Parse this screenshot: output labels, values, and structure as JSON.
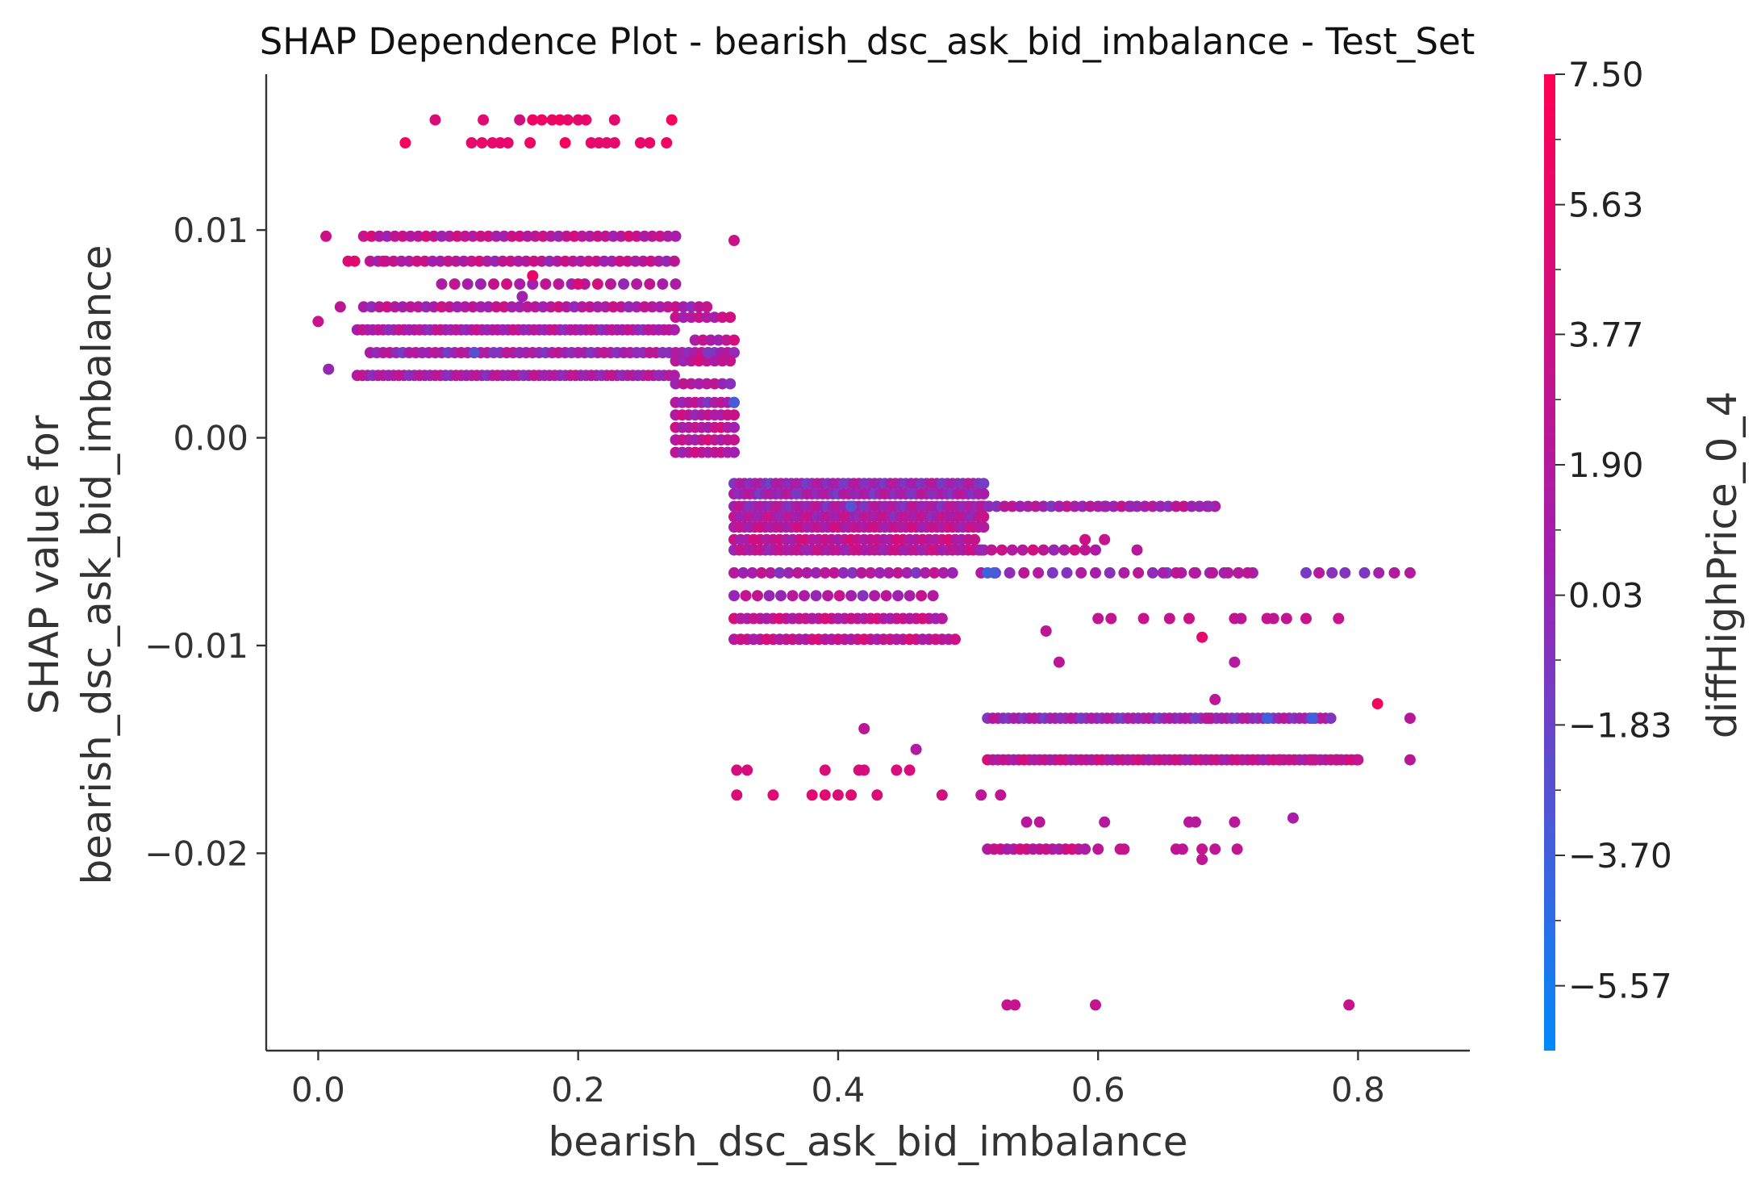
{
  "chart_data": {
    "type": "scatter",
    "title": "SHAP Dependence Plot - bearish_dsc_ask_bid_imbalance - Test_Set",
    "xlabel": "bearish_dsc_ask_bid_imbalance",
    "ylabel_lines": [
      "SHAP value for",
      "bearish_dsc_ask_bid_imbalance"
    ],
    "xlim": [
      -0.04,
      0.886
    ],
    "ylim": [
      -0.0295,
      0.0175
    ],
    "x_ticks": [
      0.0,
      0.2,
      0.4,
      0.6,
      0.8
    ],
    "x_tick_labels": [
      "0.0",
      "0.2",
      "0.4",
      "0.6",
      "0.8"
    ],
    "y_ticks": [
      0.01,
      0.0,
      -0.01,
      -0.02
    ],
    "y_tick_labels": [
      "0.01",
      "0.00",
      "−0.01",
      "−0.02"
    ],
    "grid": false,
    "colorbar": {
      "label": "diffHighPrice_0_4",
      "min": -6.5,
      "max": 7.5,
      "ticks": [
        7.5,
        5.63,
        3.77,
        1.9,
        0.03,
        -1.83,
        -3.7,
        -5.57
      ],
      "tick_labels": [
        "7.50",
        "5.63",
        "3.77",
        "1.90",
        "0.03",
        "−1.83",
        "−3.70",
        "−5.57"
      ],
      "color_low": "#008afb",
      "color_mid": "#a020b0",
      "color_high": "#ff0052"
    },
    "point_color_default": 1.9,
    "bands": [
      {
        "x0": 0.035,
        "x1": 0.275,
        "y": 0.0097,
        "step": 0.006,
        "c": 2.5
      },
      {
        "x0": 0.04,
        "x1": 0.275,
        "y": 0.0085,
        "step": 0.006,
        "c": 2.2
      },
      {
        "x0": 0.095,
        "x1": 0.275,
        "y": 0.0074,
        "step": 0.01,
        "c": 1.9
      },
      {
        "x0": 0.035,
        "x1": 0.3,
        "y": 0.0063,
        "step": 0.006,
        "c": 1.8
      },
      {
        "x0": 0.03,
        "x1": 0.275,
        "y": 0.0052,
        "step": 0.004,
        "c": 1.4
      },
      {
        "x0": 0.04,
        "x1": 0.32,
        "y": 0.0041,
        "step": 0.005,
        "c": 0.8
      },
      {
        "x0": 0.03,
        "x1": 0.275,
        "y": 0.003,
        "step": 0.004,
        "c": 1.3
      },
      {
        "x0": 0.275,
        "x1": 0.32,
        "y": 0.0058,
        "step": 0.006,
        "c": 2.3
      },
      {
        "x0": 0.29,
        "x1": 0.32,
        "y": 0.0047,
        "step": 0.006,
        "c": 2.1
      },
      {
        "x0": 0.275,
        "x1": 0.32,
        "y": 0.0037,
        "step": 0.006,
        "c": 2.4
      },
      {
        "x0": 0.275,
        "x1": 0.32,
        "y": 0.0026,
        "step": 0.006,
        "c": 1.5
      },
      {
        "x0": 0.275,
        "x1": 0.32,
        "y": 0.0017,
        "step": 0.005,
        "c": 1.2
      },
      {
        "x0": 0.275,
        "x1": 0.32,
        "y": 0.0011,
        "step": 0.005,
        "c": 2.0
      },
      {
        "x0": 0.275,
        "x1": 0.32,
        "y": 0.0005,
        "step": 0.005,
        "c": 2.3
      },
      {
        "x0": 0.275,
        "x1": 0.32,
        "y": -0.0001,
        "step": 0.005,
        "c": 2.5
      },
      {
        "x0": 0.275,
        "x1": 0.32,
        "y": -0.0007,
        "step": 0.005,
        "c": 2.3
      },
      {
        "x0": 0.32,
        "x1": 0.515,
        "y": -0.0022,
        "step": 0.004,
        "c": 0.3
      },
      {
        "x0": 0.32,
        "x1": 0.515,
        "y": -0.0027,
        "step": 0.004,
        "c": 0.6
      },
      {
        "x0": 0.32,
        "x1": 0.515,
        "y": -0.0033,
        "step": 0.004,
        "c": 0.9
      },
      {
        "x0": 0.32,
        "x1": 0.515,
        "y": -0.0038,
        "step": 0.004,
        "c": 1.6
      },
      {
        "x0": 0.32,
        "x1": 0.515,
        "y": -0.0043,
        "step": 0.004,
        "c": 2.3
      },
      {
        "x0": 0.32,
        "x1": 0.505,
        "y": -0.0049,
        "step": 0.005,
        "c": 2.6
      },
      {
        "x0": 0.32,
        "x1": 0.515,
        "y": -0.0054,
        "step": 0.004,
        "c": 2.0
      },
      {
        "x0": 0.32,
        "x1": 0.49,
        "y": -0.0065,
        "step": 0.007,
        "c": 1.2
      },
      {
        "x0": 0.32,
        "x1": 0.48,
        "y": -0.0076,
        "step": 0.009,
        "c": 1.3
      },
      {
        "x0": 0.32,
        "x1": 0.48,
        "y": -0.0087,
        "step": 0.005,
        "c": 2.6
      },
      {
        "x0": 0.32,
        "x1": 0.49,
        "y": -0.0097,
        "step": 0.005,
        "c": 2.8
      },
      {
        "x0": 0.51,
        "x1": 0.69,
        "y": -0.0033,
        "step": 0.006,
        "c": 1.2
      },
      {
        "x0": 0.51,
        "x1": 0.6,
        "y": -0.0054,
        "step": 0.008,
        "c": 2.4
      },
      {
        "x0": 0.51,
        "x1": 0.72,
        "y": -0.0065,
        "step": 0.011,
        "c": 0.6
      },
      {
        "x0": 0.515,
        "x1": 0.78,
        "y": -0.0135,
        "step": 0.004,
        "c": 0.4
      },
      {
        "x0": 0.515,
        "x1": 0.8,
        "y": -0.0155,
        "step": 0.004,
        "c": 2.6
      },
      {
        "x0": 0.515,
        "x1": 0.59,
        "y": -0.0198,
        "step": 0.005,
        "c": 2.7
      }
    ],
    "points": [
      [
        0.09,
        0.0153,
        4.6
      ],
      [
        0.127,
        0.0153,
        5.2
      ],
      [
        0.155,
        0.0153,
        4.2
      ],
      [
        0.165,
        0.0153,
        6.4
      ],
      [
        0.172,
        0.0153,
        6.4
      ],
      [
        0.18,
        0.0153,
        6.0
      ],
      [
        0.186,
        0.0153,
        6.4
      ],
      [
        0.192,
        0.0153,
        5.8
      ],
      [
        0.2,
        0.0153,
        5.6
      ],
      [
        0.206,
        0.0153,
        5.8
      ],
      [
        0.228,
        0.0153,
        5.6
      ],
      [
        0.272,
        0.0153,
        6.8
      ],
      [
        0.067,
        0.0142,
        6.8
      ],
      [
        0.118,
        0.0142,
        5.6
      ],
      [
        0.126,
        0.0142,
        5.8
      ],
      [
        0.134,
        0.0142,
        5.8
      ],
      [
        0.14,
        0.0142,
        5.8
      ],
      [
        0.146,
        0.0142,
        5.6
      ],
      [
        0.163,
        0.0142,
        6.4
      ],
      [
        0.19,
        0.0142,
        6.8
      ],
      [
        0.21,
        0.0142,
        5.8
      ],
      [
        0.216,
        0.0142,
        5.6
      ],
      [
        0.222,
        0.0142,
        5.4
      ],
      [
        0.228,
        0.0142,
        5.6
      ],
      [
        0.248,
        0.0142,
        5.8
      ],
      [
        0.255,
        0.0142,
        5.8
      ],
      [
        0.268,
        0.0142,
        6.2
      ],
      [
        0.006,
        0.0097,
        3.6
      ],
      [
        0.023,
        0.0085,
        5.0
      ],
      [
        0.028,
        0.0085,
        5.4
      ],
      [
        0.05,
        0.0085,
        3.6
      ],
      [
        0.017,
        0.0063,
        2.5
      ],
      [
        0.0,
        0.0056,
        3.2
      ],
      [
        0.008,
        0.0033,
        0.2
      ],
      [
        0.2,
        0.0074,
        4.8
      ],
      [
        0.165,
        0.0078,
        5.8
      ],
      [
        0.157,
        0.0068,
        0.6
      ],
      [
        0.12,
        0.0041,
        -2.5
      ],
      [
        0.32,
        0.0095,
        3.5
      ],
      [
        0.32,
        0.0017,
        -3.2
      ],
      [
        0.3,
        0.0041,
        -1.0
      ],
      [
        0.515,
        -0.0065,
        -3.8
      ],
      [
        0.52,
        -0.0065,
        -3.5
      ],
      [
        0.41,
        -0.0033,
        -2.8
      ],
      [
        0.57,
        -0.0033,
        0.8
      ],
      [
        0.605,
        -0.0033,
        0.8
      ],
      [
        0.625,
        -0.0033,
        0.2
      ],
      [
        0.685,
        -0.0033,
        0.0
      ],
      [
        0.59,
        -0.0049,
        3.6
      ],
      [
        0.605,
        -0.0049,
        3.0
      ],
      [
        0.63,
        -0.0054,
        2.2
      ],
      [
        0.65,
        -0.0065,
        0.8
      ],
      [
        0.66,
        -0.0065,
        2.6
      ],
      [
        0.674,
        -0.0065,
        1.7
      ],
      [
        0.688,
        -0.0065,
        2.2
      ],
      [
        0.7,
        -0.0065,
        1.6
      ],
      [
        0.708,
        -0.0065,
        2.0
      ],
      [
        0.715,
        -0.0065,
        2.5
      ],
      [
        0.77,
        -0.0065,
        2.1
      ],
      [
        0.79,
        -0.0065,
        -0.8
      ],
      [
        0.805,
        -0.0065,
        -1.0
      ],
      [
        0.76,
        -0.0065,
        -1.2
      ],
      [
        0.78,
        -0.0065,
        -0.6
      ],
      [
        0.84,
        -0.0065,
        1.8
      ],
      [
        0.828,
        -0.0065,
        1.7
      ],
      [
        0.816,
        -0.0065,
        0.8
      ],
      [
        0.6,
        -0.0087,
        2.6
      ],
      [
        0.61,
        -0.0087,
        3.0
      ],
      [
        0.635,
        -0.0087,
        3.2
      ],
      [
        0.655,
        -0.0087,
        2.9
      ],
      [
        0.67,
        -0.0087,
        3.6
      ],
      [
        0.705,
        -0.0087,
        2.8
      ],
      [
        0.71,
        -0.0087,
        2.6
      ],
      [
        0.73,
        -0.0087,
        3.0
      ],
      [
        0.735,
        -0.0087,
        2.8
      ],
      [
        0.745,
        -0.0087,
        2.8
      ],
      [
        0.76,
        -0.0087,
        3.2
      ],
      [
        0.785,
        -0.0087,
        3.2
      ],
      [
        0.68,
        -0.0096,
        5.6
      ],
      [
        0.56,
        -0.0093,
        2.5
      ],
      [
        0.705,
        -0.0108,
        1.8
      ],
      [
        0.57,
        -0.0108,
        2.4
      ],
      [
        0.69,
        -0.0126,
        2.4
      ],
      [
        0.815,
        -0.0128,
        6.5
      ],
      [
        0.84,
        -0.0135,
        2.2
      ],
      [
        0.765,
        -0.0135,
        -3.6
      ],
      [
        0.73,
        -0.0135,
        -3.6
      ],
      [
        0.685,
        -0.0135,
        2.4
      ],
      [
        0.84,
        -0.0155,
        2.5
      ],
      [
        0.74,
        -0.0155,
        3.0
      ],
      [
        0.765,
        -0.0155,
        3.0
      ],
      [
        0.784,
        -0.0155,
        3.1
      ],
      [
        0.8,
        -0.0155,
        3.0
      ],
      [
        0.42,
        -0.014,
        2.5
      ],
      [
        0.46,
        -0.015,
        1.6
      ],
      [
        0.322,
        -0.016,
        4.4
      ],
      [
        0.33,
        -0.016,
        4.4
      ],
      [
        0.39,
        -0.016,
        4.6
      ],
      [
        0.416,
        -0.016,
        4.5
      ],
      [
        0.42,
        -0.016,
        4.4
      ],
      [
        0.445,
        -0.016,
        4.6
      ],
      [
        0.455,
        -0.016,
        4.6
      ],
      [
        0.322,
        -0.0172,
        4.8
      ],
      [
        0.35,
        -0.0172,
        5.0
      ],
      [
        0.38,
        -0.0172,
        5.2
      ],
      [
        0.39,
        -0.0172,
        5.2
      ],
      [
        0.4,
        -0.0172,
        4.8
      ],
      [
        0.41,
        -0.0172,
        5.2
      ],
      [
        0.43,
        -0.0172,
        4.8
      ],
      [
        0.48,
        -0.0172,
        4.2
      ],
      [
        0.51,
        -0.0172,
        2.6
      ],
      [
        0.525,
        -0.0172,
        2.8
      ],
      [
        0.545,
        -0.0185,
        2.0
      ],
      [
        0.555,
        -0.0185,
        2.4
      ],
      [
        0.605,
        -0.0185,
        2.0
      ],
      [
        0.67,
        -0.0185,
        2.2
      ],
      [
        0.675,
        -0.0185,
        2.1
      ],
      [
        0.705,
        -0.0185,
        2.2
      ],
      [
        0.75,
        -0.0183,
        1.2
      ],
      [
        0.6,
        -0.0198,
        2.6
      ],
      [
        0.617,
        -0.0198,
        3.0
      ],
      [
        0.62,
        -0.0198,
        3.2
      ],
      [
        0.66,
        -0.0198,
        2.8
      ],
      [
        0.665,
        -0.0198,
        2.6
      ],
      [
        0.68,
        -0.0198,
        3.0
      ],
      [
        0.69,
        -0.0198,
        2.6
      ],
      [
        0.707,
        -0.0198,
        3.0
      ],
      [
        0.68,
        -0.0203,
        2.7
      ],
      [
        0.53,
        -0.0273,
        3.0
      ],
      [
        0.536,
        -0.0273,
        3.2
      ],
      [
        0.598,
        -0.0273,
        3.0
      ],
      [
        0.793,
        -0.0273,
        3.2
      ]
    ]
  }
}
